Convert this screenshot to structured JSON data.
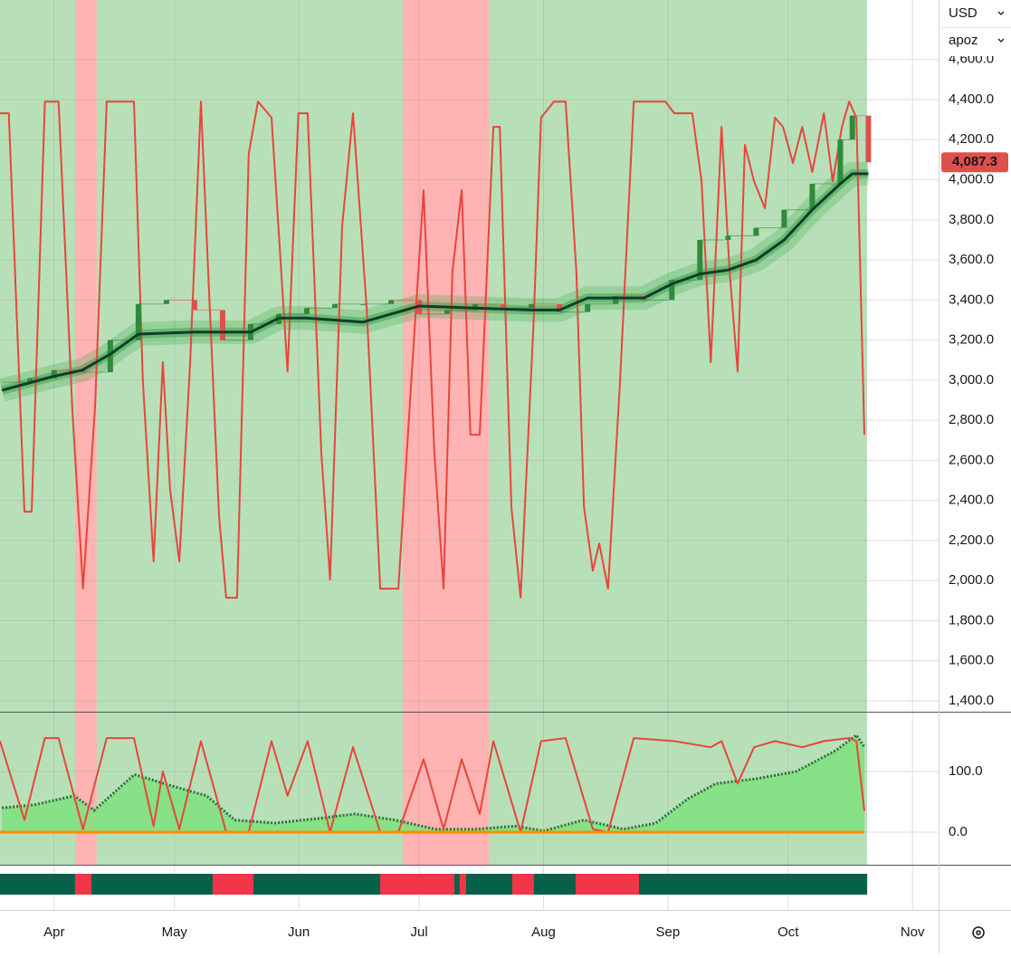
{
  "chart_data": [
    {
      "type": "candlestick",
      "currency": "USD",
      "indicator": "apoz",
      "last_price_label": "4,087.3",
      "xlim": [
        -13.5,
        220.5
      ],
      "ylim": [
        1346,
        4897
      ],
      "xticks": [
        {
          "value": 0,
          "label": "Apr"
        },
        {
          "value": 30,
          "label": "May"
        },
        {
          "value": 61,
          "label": "Jun"
        },
        {
          "value": 91,
          "label": "Jul"
        },
        {
          "value": 122,
          "label": "Aug"
        },
        {
          "value": 153,
          "label": "Sep"
        },
        {
          "value": 183,
          "label": "Oct"
        },
        {
          "value": 214,
          "label": "Nov"
        }
      ],
      "yticks": [
        {
          "value": 1400,
          "label": "1,400.0"
        },
        {
          "value": 1600,
          "label": "1,600.0"
        },
        {
          "value": 1800,
          "label": "1,800.0"
        },
        {
          "value": 2000,
          "label": "2,000.0"
        },
        {
          "value": 2200,
          "label": "2,200.0"
        },
        {
          "value": 2400,
          "label": "2,400.0"
        },
        {
          "value": 2600,
          "label": "2,600.0"
        },
        {
          "value": 2800,
          "label": "2,800.0"
        },
        {
          "value": 3000,
          "label": "3,000.0"
        },
        {
          "value": 3200,
          "label": "3,200.0"
        },
        {
          "value": 3400,
          "label": "3,400.0"
        },
        {
          "value": 3600,
          "label": "3,600.0"
        },
        {
          "value": 3800,
          "label": "3,800.0"
        },
        {
          "value": 4000,
          "label": "4,000.0"
        },
        {
          "value": 4200,
          "label": "4,200.0"
        },
        {
          "value": 4400,
          "label": "4,400.0"
        },
        {
          "value": 4600,
          "label": "4,600.0"
        }
      ],
      "up_color": "#2e8b3a",
      "down_color": "#e0504a",
      "highlight_color": "#ffb3b3",
      "highlight_ranges": [
        [
          5.2,
          10.6
        ],
        [
          86.9,
          108.4
        ]
      ],
      "x": [
        -13,
        -6,
        0,
        7,
        14,
        21,
        28,
        35,
        42,
        49,
        56,
        63,
        70,
        77,
        84,
        91,
        98,
        105,
        112,
        119,
        126,
        133,
        140,
        147,
        154,
        161,
        168,
        175,
        182,
        189,
        196,
        199,
        203
      ],
      "close": [
        2990,
        3010,
        3050,
        3040,
        3200,
        3380,
        3400,
        3350,
        3200,
        3280,
        3330,
        3360,
        3380,
        3380,
        3400,
        3330,
        3350,
        3380,
        3360,
        3380,
        3340,
        3380,
        3420,
        3400,
        3500,
        3700,
        3720,
        3760,
        3850,
        3980,
        4200,
        4320,
        4087.3
      ],
      "trend": {
        "color": "#0f3d2a",
        "x": [
          -13,
          0,
          7,
          14,
          21,
          35,
          49,
          56,
          63,
          77,
          84,
          91,
          105,
          119,
          126,
          133,
          147,
          154,
          161,
          168,
          175,
          182,
          189,
          196,
          199,
          203
        ],
        "values": [
          2950,
          3020,
          3050,
          3130,
          3230,
          3240,
          3240,
          3310,
          3310,
          3290,
          3330,
          3370,
          3360,
          3350,
          3350,
          3410,
          3410,
          3480,
          3530,
          3550,
          3600,
          3700,
          3850,
          3980,
          4030,
          4030
        ]
      },
      "oscillator": {
        "color": "#e8453c",
        "x": [
          -13.5,
          -11.3,
          -7.4,
          -5.6,
          -2.3,
          1.1,
          4.5,
          7.2,
          10.2,
          13.1,
          19.9,
          22.1,
          24.8,
          27.1,
          28.9,
          31.2,
          33.9,
          36.6,
          38.4,
          41.1,
          42.9,
          45.6,
          48.5,
          50.8,
          54.2,
          58.2,
          60.9,
          63.2,
          66.6,
          68.8,
          71.8,
          74.5,
          77.9,
          81.3,
          85.8,
          89.2,
          92.1,
          94.8,
          97.1,
          99.3,
          101.6,
          103.8,
          106.1,
          109.5,
          111.1,
          114,
          116.3,
          119.6,
          121.4,
          124.6,
          127.5,
          130.2,
          132.1,
          134.3,
          135.9,
          138.1,
          141.1,
          144.5,
          152.4,
          154.6,
          159.1,
          161.4,
          163.7,
          166.4,
          168.4,
          170.4,
          172.2,
          174.5,
          177.2,
          179.7,
          181.7,
          184.2,
          186.5,
          189,
          191.9,
          194.1,
          196.4,
          198.2,
          200,
          202
        ],
        "values": [
          4332,
          4332,
          2344,
          2344,
          4390,
          4390,
          2864,
          1960,
          2864,
          4390,
          4390,
          2999,
          2096,
          3090,
          2457,
          2096,
          3090,
          4390,
          3542,
          2322,
          1915,
          1915,
          4129,
          4390,
          4310,
          3044,
          4332,
          4332,
          2638,
          2006,
          3767,
          4332,
          3361,
          1960,
          1960,
          3044,
          3948,
          2638,
          1960,
          3542,
          3948,
          2728,
          2728,
          4264,
          4264,
          2367,
          1915,
          3316,
          4310,
          4390,
          4390,
          3542,
          2367,
          2050,
          2186,
          1960,
          2999,
          4390,
          4390,
          4332,
          4332,
          3993,
          3090,
          4264,
          3542,
          3044,
          4174,
          3993,
          3858,
          4310,
          4264,
          4084,
          4264,
          4039,
          4332,
          3993,
          4264,
          4390,
          4310,
          2728
        ]
      }
    },
    {
      "type": "area",
      "xlim": [
        -13.5,
        220.5
      ],
      "ylim": [
        -53.7,
        195.5
      ],
      "yticks": [
        {
          "value": 0,
          "label": "0.0"
        },
        {
          "value": 100,
          "label": "100.0"
        }
      ],
      "baseline_color": "#ff8c00",
      "area": {
        "color": "#7ee07e",
        "line_color": "#2f6f3a",
        "x": [
          -13,
          -5,
          5,
          10,
          20,
          30,
          38,
          45,
          55,
          65,
          75,
          85,
          95,
          105,
          115,
          122,
          132,
          142,
          150,
          158,
          165,
          175,
          185,
          195,
          200,
          202
        ],
        "values": [
          40,
          45,
          60,
          36,
          95,
          75,
          60,
          20,
          15,
          22,
          30,
          20,
          5,
          5,
          10,
          2,
          20,
          5,
          15,
          55,
          80,
          88,
          100,
          135,
          160,
          140
        ]
      },
      "oscillator": {
        "color": "#e8453c",
        "x": [
          -13.5,
          -7.4,
          -2.3,
          1.1,
          7.2,
          13.1,
          19.9,
          24.8,
          27.1,
          31.2,
          36.6,
          42.9,
          48.5,
          54.2,
          58.2,
          63.2,
          68.8,
          74.5,
          81.3,
          85.8,
          92.1,
          97.1,
          101.6,
          106.1,
          109.5,
          116.3,
          121.4,
          127.5,
          134.3,
          138.1,
          144.5,
          154.6,
          163.7,
          166.4,
          170.4,
          174.5,
          179.7,
          186.5,
          191.9,
          198.2,
          200,
          202
        ],
        "values": [
          150,
          20,
          155,
          155,
          5,
          155,
          155,
          10,
          100,
          5,
          150,
          0,
          0,
          150,
          60,
          150,
          0,
          140,
          0,
          0,
          120,
          5,
          120,
          30,
          150,
          0,
          150,
          155,
          5,
          0,
          155,
          150,
          140,
          150,
          80,
          140,
          150,
          140,
          150,
          155,
          150,
          35
        ]
      }
    },
    {
      "type": "regime",
      "xlim": [
        -13.5,
        220.5
      ],
      "base_color": "#07614a",
      "alert_color": "#f2364a",
      "end": 202.7,
      "ranges": [
        [
          5.2,
          9.3
        ],
        [
          39.5,
          49.7
        ],
        [
          81.3,
          99.8
        ],
        [
          101.1,
          102.7
        ],
        [
          114.2,
          119.6
        ],
        [
          130,
          145.8
        ]
      ]
    }
  ]
}
